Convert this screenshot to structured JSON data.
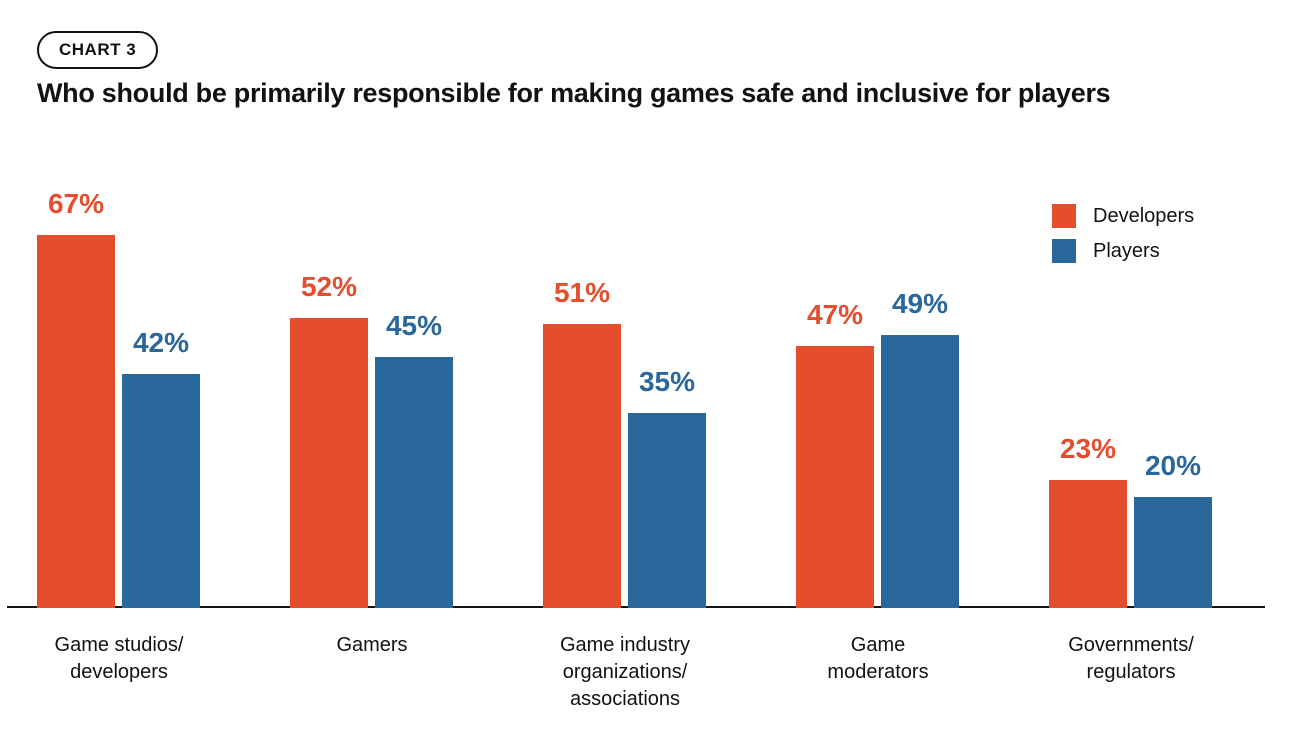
{
  "badge": {
    "label": "CHART 3"
  },
  "title": "Who should be primarily responsible for making games safe and inclusive for players",
  "legend": [
    {
      "label": "Developers",
      "color": "#E44D2E"
    },
    {
      "label": "Players",
      "color": "#2A679B"
    }
  ],
  "colors": {
    "developers": "#E44D2E",
    "players": "#2A679B",
    "axis": "#121212",
    "text": "#121212"
  },
  "chart_data": {
    "type": "bar",
    "title": "Who should be primarily responsible for making games safe and inclusive for players",
    "categories": [
      "Game studios/developers",
      "Gamers",
      "Game industry organizations/associations",
      "Game moderators",
      "Governments/regulators"
    ],
    "category_lines": [
      [
        "Game studios/",
        "developers"
      ],
      [
        "Gamers"
      ],
      [
        "Game industry",
        "organizations/",
        "associations"
      ],
      [
        "Game",
        "moderators"
      ],
      [
        "Governments/",
        "regulators"
      ]
    ],
    "series": [
      {
        "name": "Developers",
        "color": "#E44D2E",
        "values": [
          67,
          52,
          51,
          47,
          23
        ]
      },
      {
        "name": "Players",
        "color": "#2A679B",
        "values": [
          42,
          45,
          35,
          49,
          20
        ]
      }
    ],
    "value_suffix": "%",
    "value_labels": true,
    "ylim": [
      0,
      100
    ],
    "grid": false,
    "legend_position": "top-right",
    "xlabel": "",
    "ylabel": ""
  }
}
